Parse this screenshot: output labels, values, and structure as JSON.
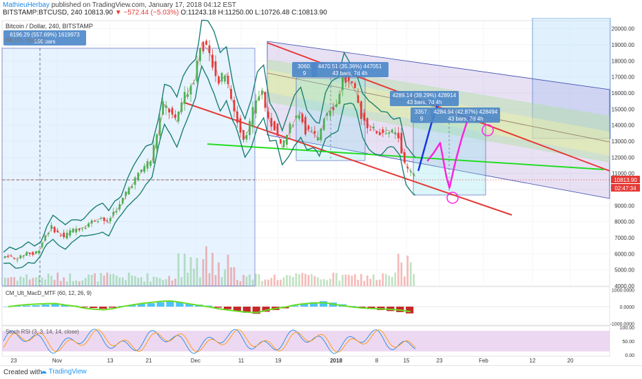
{
  "header": {
    "author": "MathieuHerbay",
    "published_text": "published on TradingView.com, January 17, 2018 04:12 EST",
    "symbol_line": "BITSTAMP:BTCUSD, 240",
    "price_now": "10813.90",
    "change_text": "▼ −572.44 (−5.03%)",
    "ohlc_text": "O:11243.18 H:11250.00 L:10726.48 C:10813.90"
  },
  "footer": {
    "created_with": "Created with",
    "brand": "TradingView"
  },
  "colors": {
    "up": "#4caf50",
    "down": "#e53935",
    "bb": "#1b7f73",
    "channel_red": "#e53935",
    "channel_fill": "#7e57c2",
    "green_line": "#22dd22",
    "blue_path": "#1535e0",
    "magenta_path": "#ff22dd",
    "measure": "#4a86c9",
    "stoch_band": "#e1bee7"
  },
  "chart_data": {
    "type": "candlestick",
    "title": "Bitcoin / Dollar, 240, BITSTAMP",
    "indicator_label": "BB (20, close, 2)",
    "x_ticks": [
      "23",
      "Nov",
      "13",
      "21",
      "Dec",
      "11",
      "19",
      "2018",
      "8",
      "15",
      "23",
      "Feb",
      "12",
      "20"
    ],
    "y_ticks": [
      4000,
      5000,
      6000,
      7000,
      8000,
      9000,
      10000,
      11000,
      12000,
      13000,
      14000,
      15000,
      16000,
      17000,
      18000,
      19000,
      20000
    ],
    "ylim": [
      4000,
      20500
    ],
    "last_price_label": "10813.90",
    "countdown_label": "02:47:34",
    "price_path": [
      [
        0,
        5750
      ],
      [
        2,
        5920
      ],
      [
        4,
        5680
      ],
      [
        6,
        5800
      ],
      [
        8,
        6100
      ],
      [
        10,
        5950
      ],
      [
        12,
        6300
      ],
      [
        14,
        7150
      ],
      [
        16,
        7650
      ],
      [
        18,
        7300
      ],
      [
        20,
        7050
      ],
      [
        22,
        7400
      ],
      [
        24,
        7550
      ],
      [
        26,
        7650
      ],
      [
        28,
        7900
      ],
      [
        30,
        8100
      ],
      [
        32,
        8250
      ],
      [
        34,
        7900
      ],
      [
        36,
        8600
      ],
      [
        38,
        9000
      ],
      [
        40,
        9800
      ],
      [
        42,
        10400
      ],
      [
        44,
        10900
      ],
      [
        46,
        11500
      ],
      [
        48,
        11800
      ],
      [
        50,
        13500
      ],
      [
        52,
        15300
      ],
      [
        54,
        14900
      ],
      [
        56,
        14200
      ],
      [
        58,
        15400
      ],
      [
        60,
        16200
      ],
      [
        62,
        16900
      ],
      [
        64,
        19100
      ],
      [
        66,
        18700
      ],
      [
        68,
        17900
      ],
      [
        70,
        16700
      ],
      [
        72,
        17200
      ],
      [
        74,
        15500
      ],
      [
        76,
        14300
      ],
      [
        78,
        13200
      ],
      [
        80,
        14100
      ],
      [
        82,
        15600
      ],
      [
        84,
        16100
      ],
      [
        86,
        14200
      ],
      [
        88,
        13900
      ],
      [
        90,
        12600
      ],
      [
        92,
        13400
      ],
      [
        94,
        14300
      ],
      [
        96,
        14800
      ],
      [
        98,
        13700
      ],
      [
        100,
        13500
      ],
      [
        102,
        13100
      ],
      [
        104,
        14600
      ],
      [
        106,
        15100
      ],
      [
        108,
        15300
      ],
      [
        110,
        16900
      ],
      [
        112,
        16600
      ],
      [
        114,
        16000
      ],
      [
        116,
        14600
      ],
      [
        118,
        14000
      ],
      [
        120,
        13700
      ],
      [
        122,
        13500
      ],
      [
        124,
        13700
      ],
      [
        126,
        13500
      ],
      [
        128,
        13300
      ],
      [
        130,
        11500
      ],
      [
        132,
        11000
      ],
      [
        133,
        10814
      ]
    ],
    "projection_blue": [
      [
        134,
        11200
      ],
      [
        136,
        12600
      ],
      [
        138,
        14000
      ],
      [
        140,
        15200
      ],
      [
        141,
        15500
      ]
    ],
    "projection_magenta": [
      [
        137,
        11800
      ],
      [
        139,
        12300
      ],
      [
        141,
        12900
      ],
      [
        143,
        10800
      ],
      [
        144,
        10100
      ],
      [
        146,
        11800
      ],
      [
        148,
        13200
      ],
      [
        150,
        14400
      ],
      [
        151,
        14500
      ]
    ],
    "measure_labels": [
      {
        "line1": "6196.29 (557.69%) 1619973",
        "line2": "556 bars"
      },
      {
        "line1": "3060.",
        "line2": "9"
      },
      {
        "line1": "4470.51 (35.36%) 447051",
        "line2": "43 bars, 7d 4h"
      },
      {
        "line1": "4289.14 (39.29%) 428914",
        "line2": "43 bars, 7d 4h"
      },
      {
        "line1": "3357.",
        "line2": "9"
      },
      {
        "line1": "4284.94 (42.87%) 428494",
        "line2": "43 bars, 7d 4h"
      }
    ],
    "macd": {
      "label": "CM_Ult_MacD_MTF (60, 12, 26, 9)",
      "y_ticks": [
        1000,
        0,
        -1000
      ],
      "ylim": [
        -1100,
        1100
      ],
      "histogram": [
        0,
        40,
        60,
        80,
        120,
        150,
        90,
        60,
        -40,
        -80,
        -120,
        -60,
        40,
        100,
        160,
        200,
        260,
        300,
        250,
        180,
        120,
        60,
        -60,
        -150,
        -260,
        -360,
        -420,
        -300,
        -200,
        -100,
        60,
        180,
        260,
        320,
        240,
        140,
        40,
        -60,
        -140,
        -200,
        -260,
        -320,
        -400
      ]
    },
    "stoch_rsi": {
      "label": "Stoch RSI (3, 3, 14, 14, close)",
      "y_ticks": [
        100,
        50,
        0
      ],
      "ylim": [
        0,
        100
      ],
      "band": [
        20,
        80
      ]
    }
  }
}
